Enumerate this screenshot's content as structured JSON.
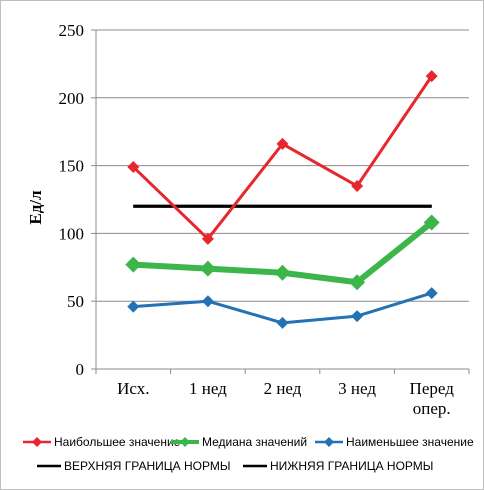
{
  "chart_data": {
    "type": "line",
    "ylabel": "Ед/л",
    "ylim": [
      0,
      250
    ],
    "yticks": [
      0,
      50,
      100,
      150,
      200,
      250
    ],
    "grid": true,
    "legend_position": "bottom",
    "categories": [
      [
        "Исх."
      ],
      [
        "1 нед"
      ],
      [
        "2 нед"
      ],
      [
        "3 нед"
      ],
      [
        "Перед",
        "опер."
      ]
    ],
    "series": [
      {
        "name": "Наибольшее значение",
        "color": "#e8262d",
        "marker": "diamond",
        "values": [
          149,
          96,
          166,
          135,
          216
        ]
      },
      {
        "name": "Медиана значений",
        "color": "#3cb54a",
        "marker": "diamond",
        "values": [
          77,
          74,
          71,
          64,
          108
        ]
      },
      {
        "name": "Наименьшее значение",
        "color": "#2272b4",
        "marker": "diamond",
        "values": [
          46,
          50,
          34,
          39,
          56
        ]
      },
      {
        "name": "ВЕРХНЯЯ ГРАНИЦА НОРМЫ",
        "color": "#000000",
        "marker": "none",
        "values": [
          120,
          120,
          120,
          120,
          120
        ]
      },
      {
        "name": "НИЖНЯЯ ГРАНИЦА НОРМЫ",
        "color": "#000000",
        "marker": "none",
        "values": [
          120,
          120,
          120,
          120,
          120
        ]
      }
    ]
  }
}
